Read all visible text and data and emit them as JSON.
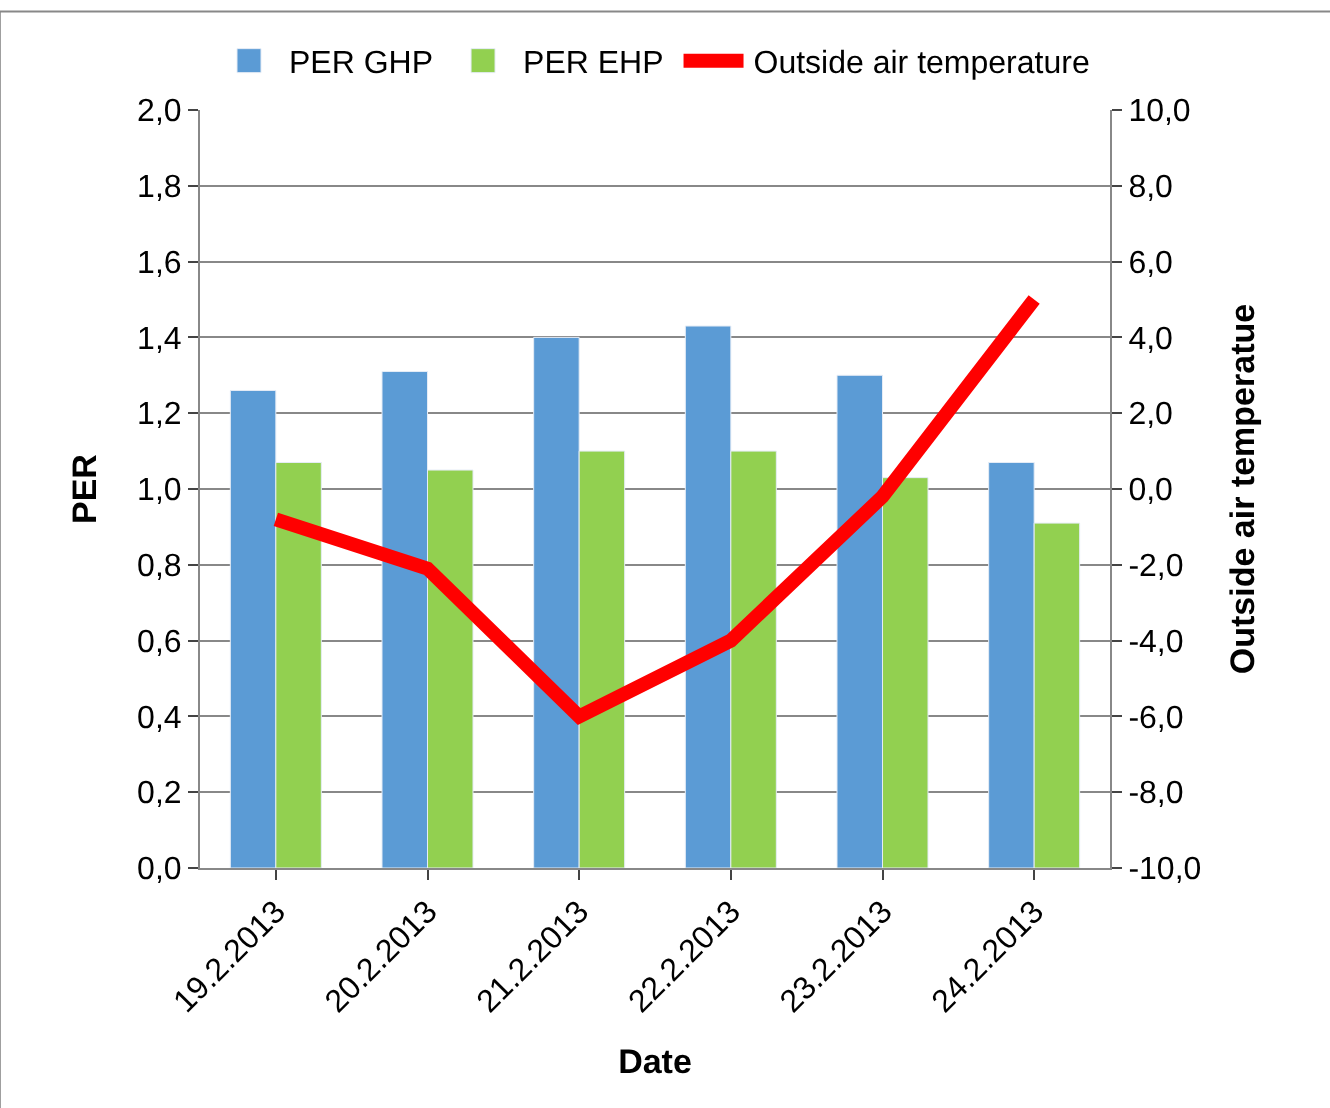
{
  "chart_data": {
    "type": "bar",
    "xlabel": "Date",
    "ylabel": "PER",
    "y2label": "Outside air temperatue",
    "categories": [
      "19.2.2013",
      "20.2.2013",
      "21.2.2013",
      "22.2.2013",
      "23.2.2013",
      "24.2.2013"
    ],
    "series": [
      {
        "name": "PER GHP",
        "color": "#5b9bd5",
        "values": [
          1.26,
          1.31,
          1.4,
          1.43,
          1.3,
          1.07
        ]
      },
      {
        "name": "PER EHP",
        "color": "#92d050",
        "values": [
          1.07,
          1.05,
          1.1,
          1.1,
          1.03,
          0.91
        ]
      },
      {
        "name": "Outside air temperature",
        "type": "line",
        "axis": "y2",
        "color": "#ff0000",
        "marker": "none",
        "line_style": "solid",
        "values": [
          -0.8,
          -2.1,
          -6.0,
          -4.0,
          -0.2,
          5.0
        ]
      }
    ],
    "ylim": [
      0,
      2
    ],
    "yticks": [
      {
        "value": 0,
        "label": "0,0"
      },
      {
        "value": 0.2,
        "label": "0,2"
      },
      {
        "value": 0.4,
        "label": "0,4"
      },
      {
        "value": 0.6,
        "label": "0,6"
      },
      {
        "value": 0.8,
        "label": "0,8"
      },
      {
        "value": 1.0,
        "label": "1,0"
      },
      {
        "value": 1.2,
        "label": "1,2"
      },
      {
        "value": 1.4,
        "label": "1,4"
      },
      {
        "value": 1.6,
        "label": "1,6"
      },
      {
        "value": 1.8,
        "label": "1,8"
      },
      {
        "value": 2.0,
        "label": "2,0"
      }
    ],
    "y2lim": [
      -10,
      10
    ],
    "y2ticks": [
      {
        "value": -10,
        "label": "-10,0"
      },
      {
        "value": -8,
        "label": "-8,0"
      },
      {
        "value": -6,
        "label": "-6,0"
      },
      {
        "value": -4,
        "label": "-4,0"
      },
      {
        "value": -2,
        "label": "-2,0"
      },
      {
        "value": 0,
        "label": "0,0"
      },
      {
        "value": 2,
        "label": "2,0"
      },
      {
        "value": 4,
        "label": "4,0"
      },
      {
        "value": 6,
        "label": "6,0"
      },
      {
        "value": 8,
        "label": "8,0"
      },
      {
        "value": 10,
        "label": "10,0"
      }
    ],
    "grid": "y",
    "legend": "top"
  }
}
